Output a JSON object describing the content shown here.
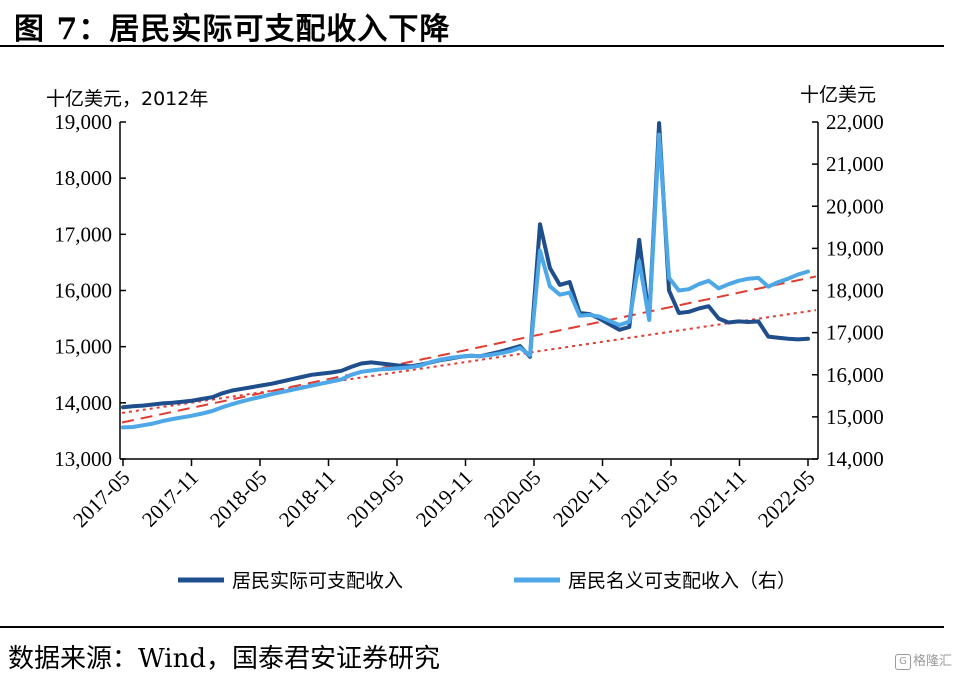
{
  "header": {
    "title": "图 7：居民实际可支配收入下降"
  },
  "footer": {
    "source": "数据来源：Wind，国泰君安证券研究",
    "watermark": "格隆汇",
    "watermark_icon": "G"
  },
  "chart_data": {
    "type": "line",
    "left_unit": "十亿美元，2012年",
    "right_unit": "十亿美元",
    "left_axis": {
      "min": 13000,
      "max": 19000,
      "ticks": [
        13000,
        14000,
        15000,
        16000,
        17000,
        18000,
        19000
      ],
      "tick_labels": [
        "13,000",
        "14,000",
        "15,000",
        "16,000",
        "17,000",
        "18,000",
        "19,000"
      ]
    },
    "right_axis": {
      "min": 14000,
      "max": 22000,
      "ticks": [
        14000,
        15000,
        16000,
        17000,
        18000,
        19000,
        20000,
        21000,
        22000
      ],
      "tick_labels": [
        "14,000",
        "15,000",
        "16,000",
        "17,000",
        "18,000",
        "19,000",
        "20,000",
        "21,000",
        "22,000"
      ]
    },
    "x_tick_labels": [
      "2017-05",
      "2017-11",
      "2018-05",
      "2018-11",
      "2019-05",
      "2019-11",
      "2020-05",
      "2020-11",
      "2021-05",
      "2021-11",
      "2022-05"
    ],
    "x_tick_months": [
      0,
      6,
      12,
      18,
      24,
      30,
      36,
      42,
      48,
      54,
      60
    ],
    "grid": false,
    "legend_position": "bottom",
    "series": [
      {
        "name": "居民实际可支配收入",
        "axis": "left",
        "color": "#1f4e8c",
        "values": [
          13920,
          13940,
          13950,
          13970,
          13990,
          14000,
          14020,
          14040,
          14070,
          14100,
          14170,
          14220,
          14250,
          14280,
          14310,
          14340,
          14380,
          14420,
          14460,
          14500,
          14520,
          14540,
          14570,
          14640,
          14700,
          14720,
          14700,
          14680,
          14660,
          14650,
          14680,
          14720,
          14760,
          14790,
          14820,
          14840,
          14830,
          14870,
          14910,
          14960,
          15010,
          14820,
          17180,
          16400,
          16100,
          16150,
          15600,
          15580,
          15500,
          15400,
          15300,
          15350,
          16900,
          15500,
          18980,
          16000,
          15600,
          15620,
          15680,
          15720,
          15500,
          15430,
          15450,
          15440,
          15450,
          15180,
          15160,
          15140,
          15130,
          15140
        ]
      },
      {
        "name": "居民名义可支配收入（右）",
        "axis": "right",
        "color": "#4ea7e6",
        "values": [
          14750,
          14760,
          14800,
          14840,
          14900,
          14950,
          14990,
          15030,
          15080,
          15140,
          15230,
          15300,
          15370,
          15430,
          15480,
          15540,
          15590,
          15640,
          15690,
          15740,
          15790,
          15840,
          15890,
          16000,
          16070,
          16100,
          16130,
          16140,
          16160,
          16180,
          16220,
          16300,
          16360,
          16400,
          16430,
          16450,
          16440,
          16470,
          16510,
          16560,
          16640,
          16460,
          18950,
          18100,
          17900,
          17950,
          17400,
          17420,
          17380,
          17280,
          17180,
          17260,
          18700,
          17300,
          21700,
          18300,
          18000,
          18030,
          18150,
          18230,
          18050,
          18150,
          18230,
          18280,
          18300,
          18090,
          18200,
          18280,
          18380,
          18450
        ]
      },
      {
        "name": "",
        "axis": "left",
        "style": "dashed",
        "color": "#e03c31",
        "values": [
          13650,
          16250
        ]
      },
      {
        "name": "",
        "axis": "left",
        "style": "dotted",
        "color": "#e03c31",
        "values": [
          13820,
          15650
        ]
      }
    ]
  }
}
